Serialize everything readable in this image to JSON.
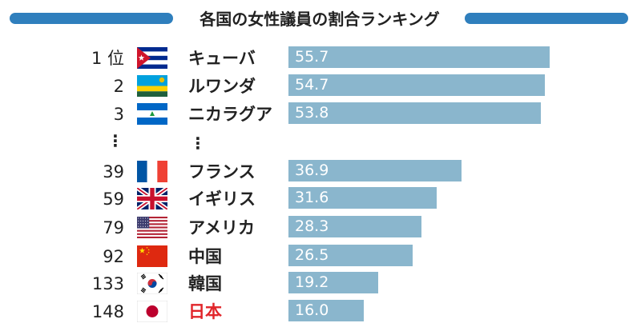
{
  "title": "各国の女性議員の割合ランキング",
  "rank_suffix": "位",
  "ellipsis": "⋮",
  "chart_data": {
    "type": "bar",
    "orientation": "horizontal",
    "title": "各国の女性議員の割合ランキング",
    "categories": [
      "キューバ",
      "ルワンダ",
      "ニカラグア",
      "フランス",
      "イギリス",
      "アメリカ",
      "中国",
      "韓国",
      "日本"
    ],
    "ranks": [
      "1",
      "2",
      "3",
      "39",
      "59",
      "79",
      "92",
      "133",
      "148"
    ],
    "values": [
      55.7,
      54.7,
      53.8,
      36.9,
      31.6,
      28.3,
      26.5,
      19.2,
      16.0
    ],
    "value_labels": [
      "55.7",
      "54.7",
      "53.8",
      "36.9",
      "31.6",
      "28.3",
      "26.5",
      "19.2",
      "16.0"
    ],
    "flags": [
      "cuba-flag",
      "rwanda-flag",
      "nicaragua-flag",
      "france-flag",
      "uk-flag",
      "usa-flag",
      "china-flag",
      "korea-flag",
      "japan-flag"
    ],
    "highlight": "日本",
    "colors": {
      "bar": "#8ab6cd",
      "value_text": "#ffffff",
      "highlight_text": "#e1252a",
      "title_bars": "#2f7fbd"
    }
  }
}
